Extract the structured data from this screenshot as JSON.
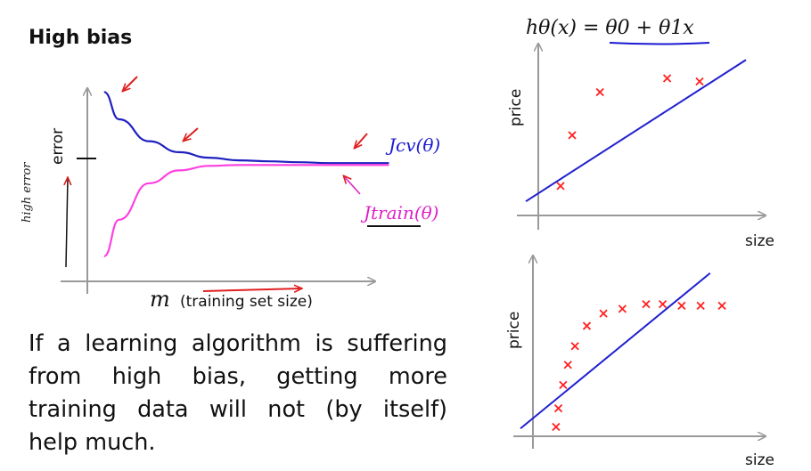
{
  "slide": {
    "title": "High bias",
    "paragraph_lines": [
      "If a learning algorithm is suffering",
      "from high bias, getting more",
      "training data will not (by itself)",
      "help much."
    ],
    "hypothesis": "hθ(x) = θ0 + θ1x"
  },
  "chart_data": [
    {
      "type": "line",
      "title": "",
      "xlabel": "m",
      "xlabel_note": "(training set size)",
      "ylabel": "error",
      "ylabel_handwritten": "high error",
      "series": [
        {
          "name": "Jcv(θ)",
          "color": "#2020c0",
          "x": [
            0.5,
            1,
            2,
            3,
            4,
            5,
            6,
            7,
            8,
            10
          ],
          "values": [
            0.95,
            0.8,
            0.68,
            0.62,
            0.59,
            0.575,
            0.57,
            0.565,
            0.56,
            0.56
          ]
        },
        {
          "name": "Jtrain(θ)",
          "color": "#ff40e0",
          "x": [
            0.5,
            1,
            2,
            3,
            4,
            5,
            6,
            7,
            8,
            10
          ],
          "values": [
            0.05,
            0.25,
            0.45,
            0.52,
            0.545,
            0.55,
            0.55,
            0.55,
            0.55,
            0.55
          ]
        }
      ],
      "xlim": [
        0,
        11
      ],
      "ylim": [
        0,
        1
      ]
    },
    {
      "type": "scatter",
      "title": "",
      "xlabel": "size",
      "ylabel": "price",
      "points": [
        {
          "x": 1.0,
          "y": 1.8
        },
        {
          "x": 1.5,
          "y": 5.1
        },
        {
          "x": 2.7,
          "y": 7.9
        },
        {
          "x": 5.6,
          "y": 8.8
        },
        {
          "x": 7.0,
          "y": 8.6
        }
      ],
      "fit_line": {
        "x": [
          -0.5,
          9.0
        ],
        "y": [
          0.8,
          10.0
        ]
      },
      "xlim": [
        -0.5,
        9.5
      ],
      "ylim": [
        0,
        11
      ]
    },
    {
      "type": "scatter",
      "title": "",
      "xlabel": "size",
      "ylabel": "price",
      "points": [
        {
          "x": 1.0,
          "y": 0.6
        },
        {
          "x": 1.1,
          "y": 1.8
        },
        {
          "x": 1.3,
          "y": 3.3
        },
        {
          "x": 1.5,
          "y": 4.6
        },
        {
          "x": 1.8,
          "y": 5.8
        },
        {
          "x": 2.3,
          "y": 7.1
        },
        {
          "x": 3.0,
          "y": 7.9
        },
        {
          "x": 3.8,
          "y": 8.2
        },
        {
          "x": 4.8,
          "y": 8.5
        },
        {
          "x": 5.5,
          "y": 8.5
        },
        {
          "x": 6.3,
          "y": 8.4
        },
        {
          "x": 7.1,
          "y": 8.4
        },
        {
          "x": 8.0,
          "y": 8.4
        }
      ],
      "fit_line": {
        "x": [
          -0.5,
          7.5
        ],
        "y": [
          0.5,
          10.5
        ]
      },
      "xlim": [
        -0.5,
        9.5
      ],
      "ylim": [
        0,
        11
      ]
    }
  ]
}
